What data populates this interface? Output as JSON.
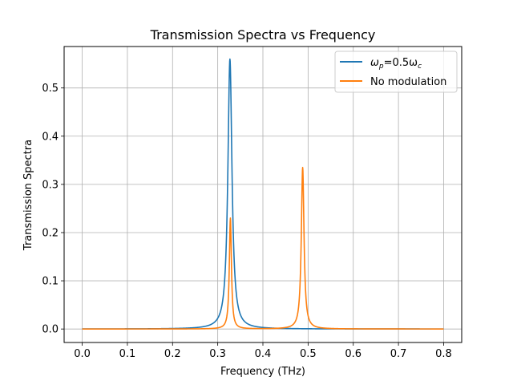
{
  "chart_data": {
    "type": "line",
    "title": "Transmission Spectra vs Frequency",
    "xlabel": "Frequency (THz)",
    "ylabel": "Transmission Spectra",
    "xlim": [
      -0.04,
      0.84
    ],
    "ylim": [
      -0.028,
      0.586
    ],
    "xticks": [
      "0.0",
      "0.1",
      "0.2",
      "0.3",
      "0.4",
      "0.5",
      "0.6",
      "0.7",
      "0.8"
    ],
    "yticks": [
      "0.0",
      "0.1",
      "0.2",
      "0.3",
      "0.4",
      "0.5"
    ],
    "grid": true,
    "legend_position": "top-right",
    "series": [
      {
        "name": "ωp=0.5ωc",
        "legend_main": "ω",
        "legend_sub1": "p",
        "legend_mid": "=0.5ω",
        "legend_sub2": "c",
        "color": "#1f77b4",
        "peaks": [
          {
            "x": 0.327,
            "height": 0.56,
            "width": 0.0055
          }
        ]
      },
      {
        "name": "No modulation",
        "color": "#ff7f0e",
        "peaks": [
          {
            "x": 0.328,
            "height": 0.23,
            "width": 0.0028
          },
          {
            "x": 0.488,
            "height": 0.335,
            "width": 0.0036
          }
        ]
      }
    ]
  }
}
